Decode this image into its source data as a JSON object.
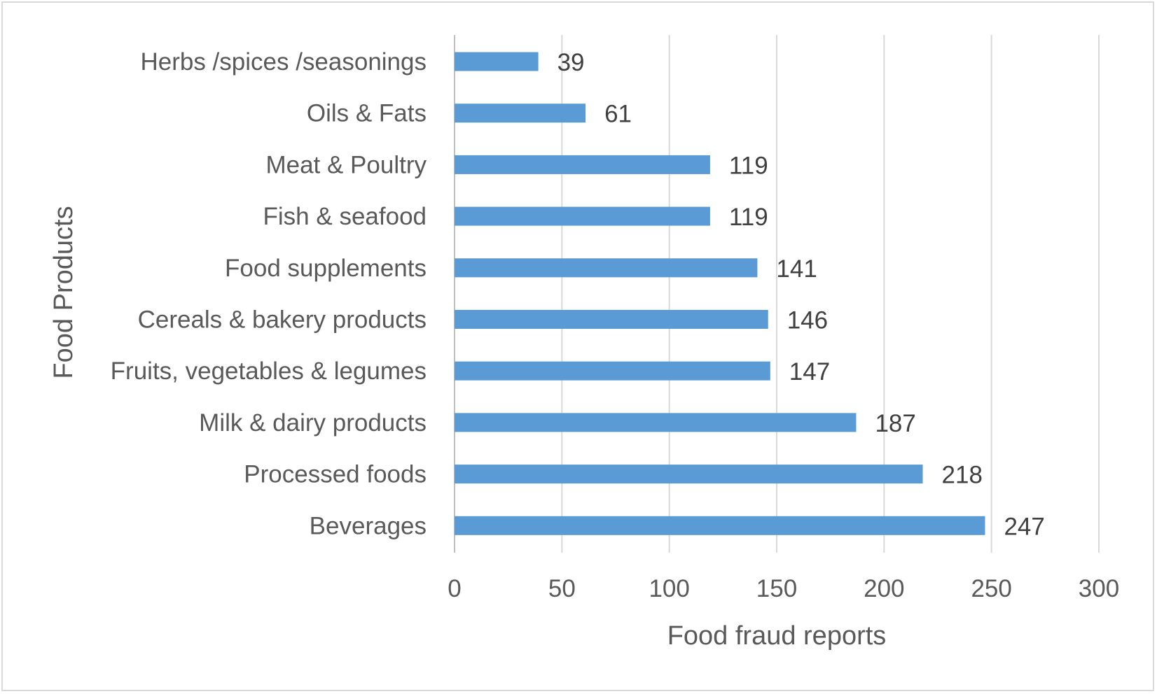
{
  "chart_data": {
    "type": "bar",
    "orientation": "horizontal",
    "categories": [
      "Herbs /spices /seasonings",
      "Oils & Fats",
      "Meat & Poultry",
      "Fish & seafood",
      "Food supplements",
      "Cereals & bakery products",
      "Fruits, vegetables & legumes",
      "Milk & dairy products",
      "Processed foods",
      "Beverages"
    ],
    "values": [
      39,
      61,
      119,
      119,
      141,
      146,
      147,
      187,
      218,
      247
    ],
    "xlabel": "Food fraud reports",
    "ylabel": "Food Products",
    "xlim": [
      0,
      300
    ],
    "xticks": [
      0,
      50,
      100,
      150,
      200,
      250,
      300
    ],
    "grid": "vertical",
    "bar_color": "#5b9bd5",
    "data_labels": true,
    "legend": "none"
  }
}
